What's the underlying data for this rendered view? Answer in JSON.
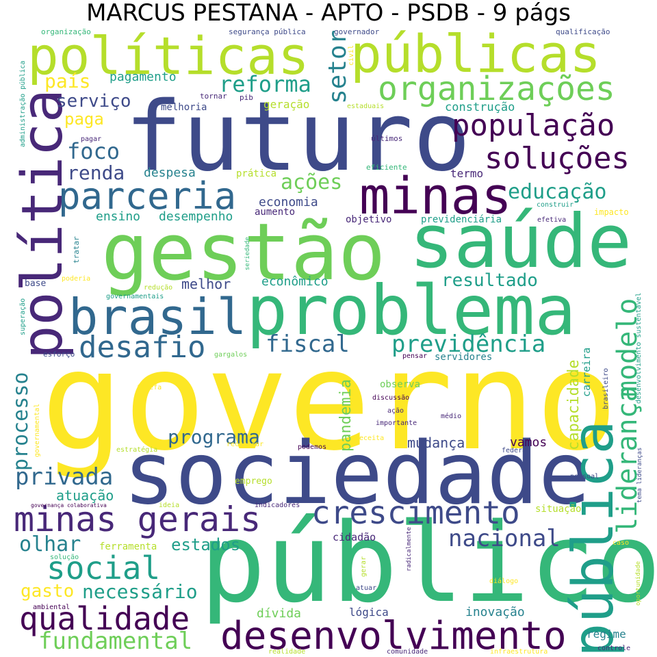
{
  "title": "MARCUS PESTANA - APTO - PSDB - 9 págs",
  "colors": {
    "c1": "#440154",
    "c2": "#482878",
    "c3": "#3e4a89",
    "c4": "#31688e",
    "c5": "#26828e",
    "c6": "#1f9e89",
    "c7": "#35b779",
    "c8": "#6ece58",
    "c9": "#b5de2b",
    "c10": "#fde725"
  },
  "words": [
    "governo",
    "público",
    "sociedade",
    "futuro",
    "gestão",
    "saúde",
    "problema",
    "política",
    "pública",
    "políticas",
    "públicas",
    "brasil",
    "minas",
    "desenvolvimento",
    "minas gerais",
    "crescimento",
    "parceria",
    "organizações",
    "população",
    "soluções",
    "qualidade",
    "social",
    "desafio",
    "previdência",
    "liderança",
    "modelo",
    "fundamental",
    "privada",
    "educação",
    "reforma",
    "fiscal",
    "nacional",
    "olhar",
    "setor",
    "processo",
    "programa",
    "resultado",
    "foco",
    "renda",
    "capacidade",
    "necessário",
    "pandemia",
    "país",
    "serviço",
    "ações",
    "paga",
    "gasto",
    "estados",
    "atuação",
    "mudança",
    "economia",
    "despesa",
    "pagamento",
    "desempenho",
    "ensino",
    "melhor",
    "econômico",
    "geração",
    "construção",
    "termo",
    "vamos",
    "dívida",
    "lógica",
    "inovação",
    "regime",
    "servidores",
    "observa",
    "melhoria",
    "ferramenta",
    "cidadão",
    "carreira",
    "situação",
    "prática",
    "aumento",
    "objetivo",
    "previdenciária",
    "emprego",
    "base",
    "organização",
    "segurança pública",
    "governador",
    "qualificação",
    "administração pública",
    "civil",
    "tornar",
    "pib",
    "pagar",
    "últimos",
    "eficiente",
    "estaduais",
    "construir",
    "efetiva",
    "impacto",
    "tratar",
    "seriedade",
    "redução",
    "poderia",
    "governamentais",
    "superação",
    "esforço",
    "gargalos",
    "pensar",
    "tarefa",
    "discussão",
    "ação",
    "importante",
    "médio",
    "receita",
    "estratégia",
    "recuperar",
    "podemos",
    "federal",
    "governamental",
    "brasileiro",
    "desenvolvimento sustentável",
    "tema lideranças",
    "pessoal",
    "governança colaborativa",
    "ideia",
    "indicadores",
    "solução",
    "radicalmente",
    "gerar",
    "atuar",
    "ambiental",
    "diálogo",
    "oportunidade",
    "caso",
    "realidade",
    "comunidade",
    "infraestrutura",
    "controle"
  ]
}
